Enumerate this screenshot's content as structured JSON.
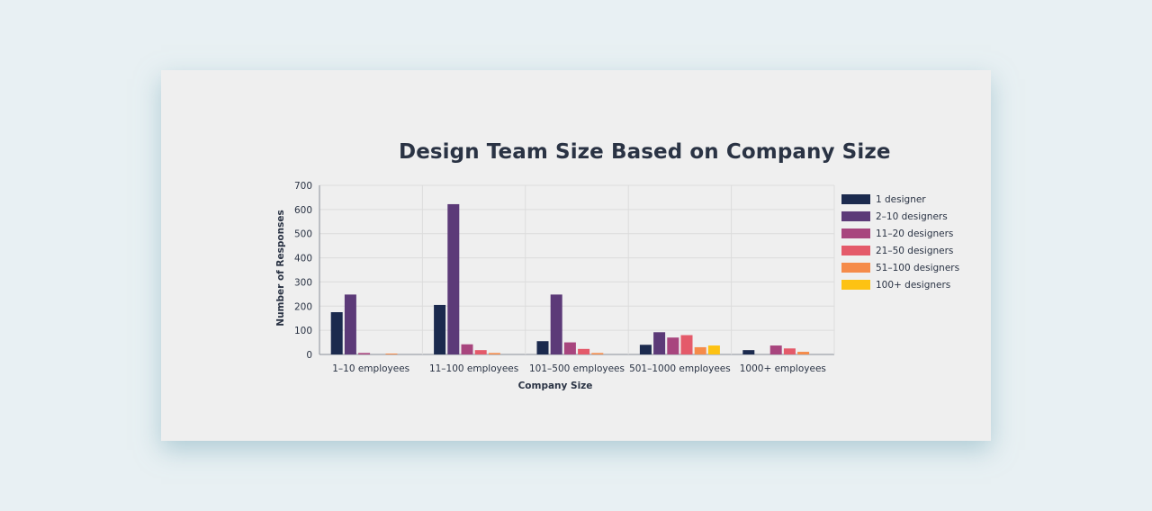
{
  "chart_data": {
    "type": "bar",
    "title": "Design Team Size Based on Company Size",
    "xlabel": "Company Size",
    "ylabel": "Number of Responses",
    "ylim": [
      0,
      700
    ],
    "yticks": [
      "0",
      "100",
      "200",
      "300",
      "400",
      "500",
      "600",
      "700"
    ],
    "grid": true,
    "legend_position": "right",
    "categories": [
      "1–10 employees",
      "11–100 employees",
      "101–500 employees",
      "501–1000 employees",
      "1000+ employees"
    ],
    "series": [
      {
        "name": "1 designer",
        "color": "#1b2a4e",
        "values": [
          175,
          205,
          55,
          40,
          18
        ]
      },
      {
        "name": "2–10 designers",
        "color": "#5c3a78",
        "values": [
          248,
          622,
          248,
          92,
          0
        ]
      },
      {
        "name": "11–20 designers",
        "color": "#a8457e",
        "values": [
          6,
          42,
          50,
          70,
          37
        ]
      },
      {
        "name": "21–50 designers",
        "color": "#e45a6a",
        "values": [
          0,
          18,
          23,
          80,
          25
        ]
      },
      {
        "name": "51–100 designers",
        "color": "#f58b4a",
        "values": [
          2,
          6,
          6,
          30,
          11
        ]
      },
      {
        "name": "100+ designers",
        "color": "#fdc213",
        "values": [
          0,
          0,
          0,
          37,
          0
        ]
      }
    ]
  }
}
